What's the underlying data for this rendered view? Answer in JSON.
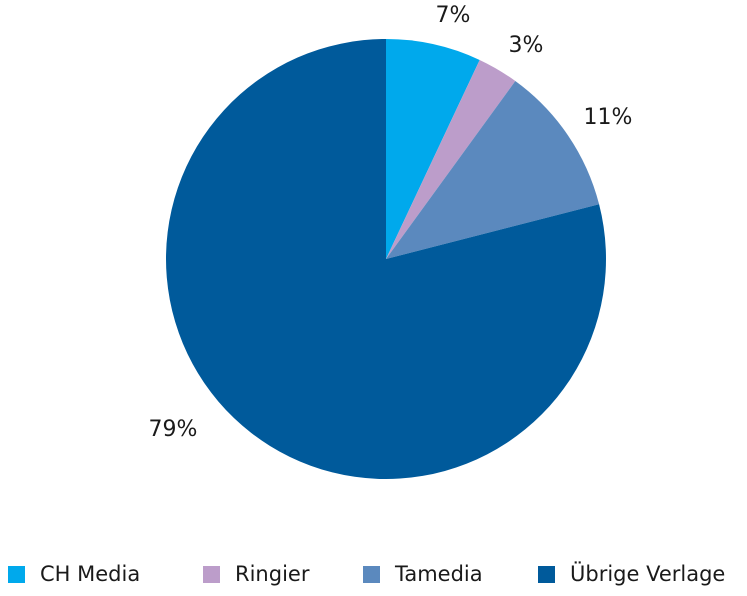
{
  "chart_data": {
    "type": "pie",
    "start_angle": "12 o'clock, clockwise",
    "slices": [
      {
        "name": "CH Media",
        "value": 7,
        "label": "7%",
        "color": "#00a9ec"
      },
      {
        "name": "Ringier",
        "value": 3,
        "label": "3%",
        "color": "#bc9dca"
      },
      {
        "name": "Tamedia",
        "value": 11,
        "label": "11%",
        "color": "#5b89be"
      },
      {
        "name": "Übrige Verlage",
        "value": 79,
        "label": "79%",
        "color": "#005a9b"
      }
    ],
    "legend_placement": "bottom"
  }
}
